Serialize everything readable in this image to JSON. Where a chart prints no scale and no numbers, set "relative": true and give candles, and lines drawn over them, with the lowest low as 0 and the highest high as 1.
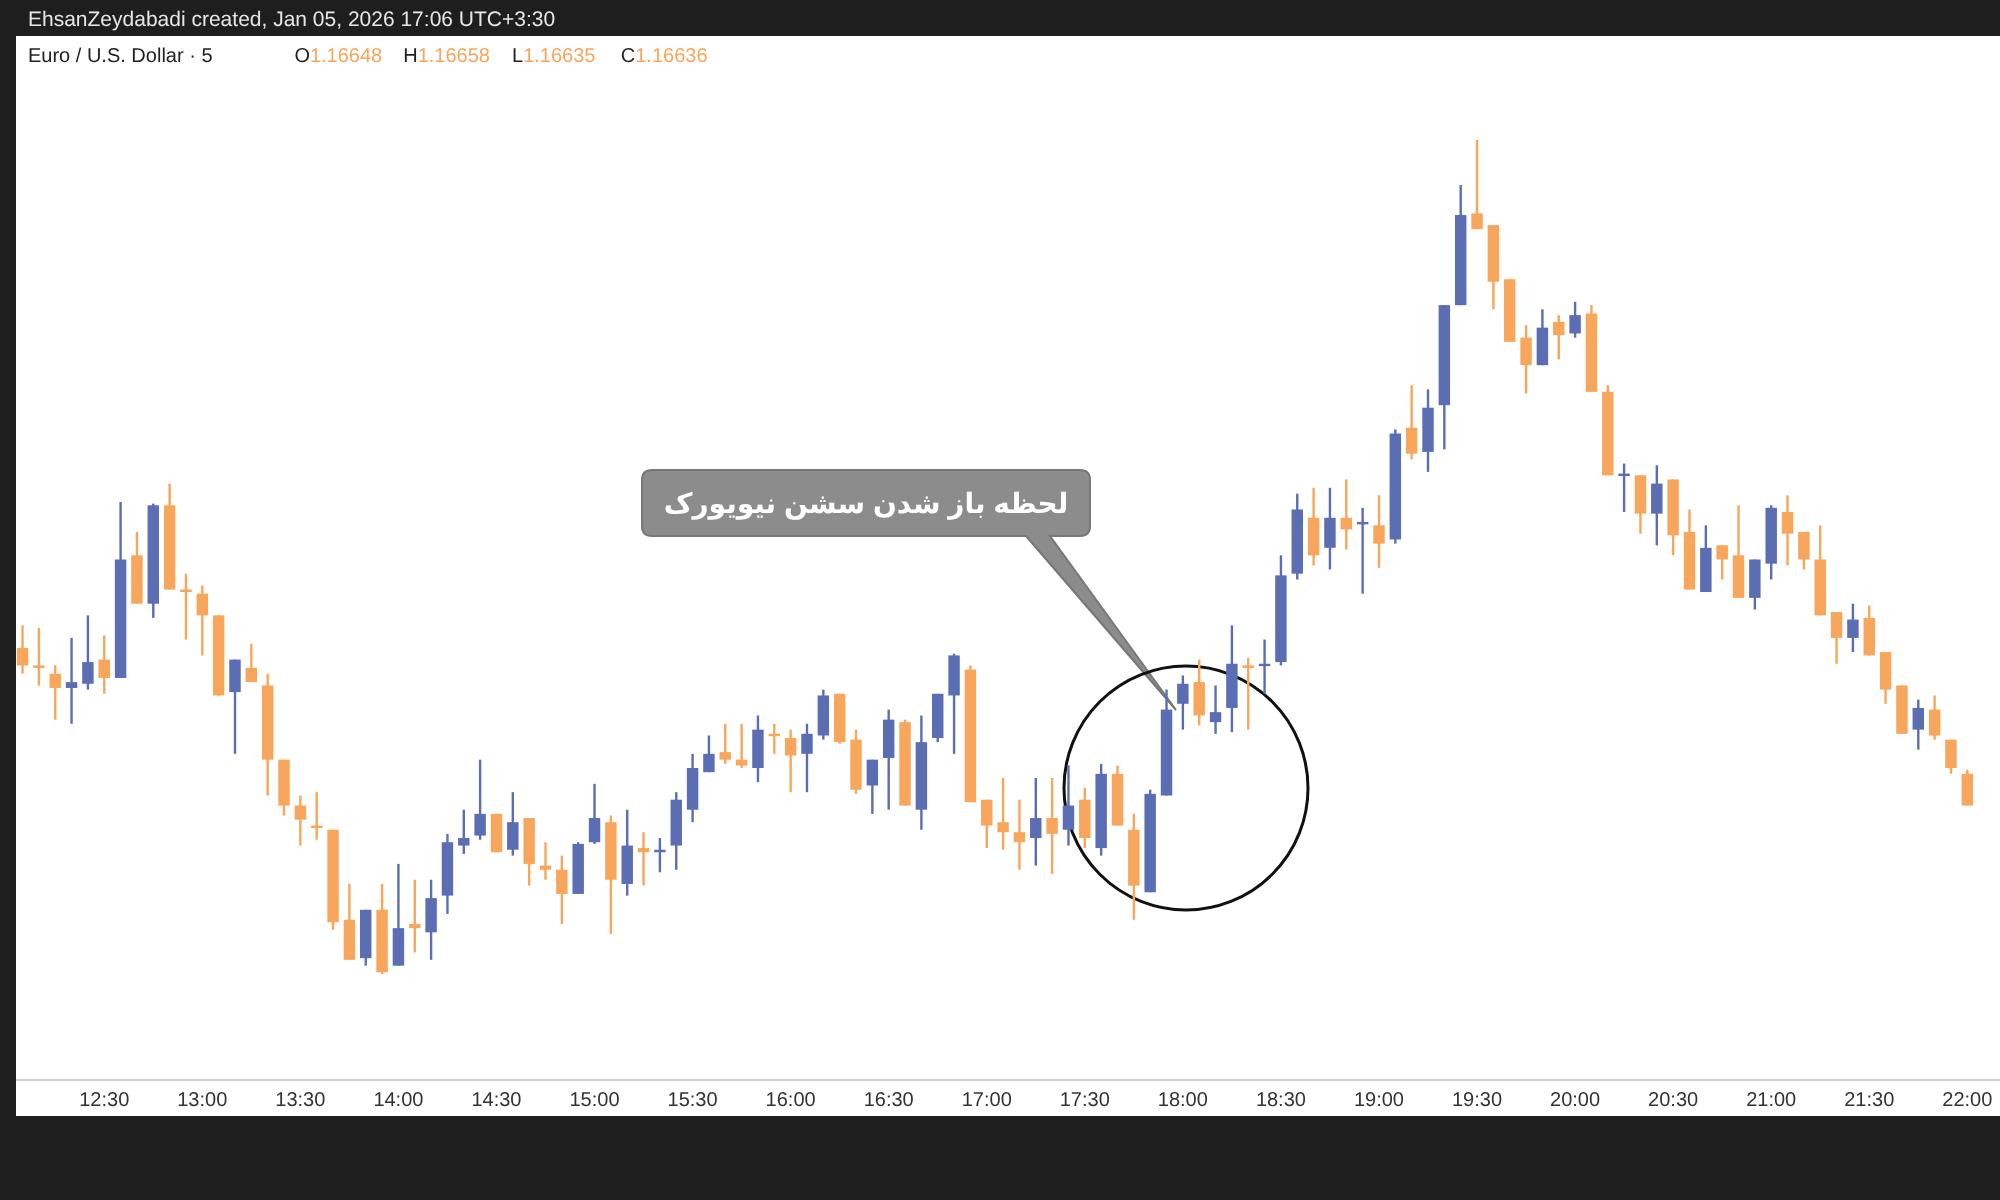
{
  "chart_data": {
    "type": "candlestick",
    "title": "Euro / U.S. Dollar · 5",
    "relative": true,
    "annotations": [
      "EhsanZeydabadi created, Jan 05, 2026 17:06 UTC+3:30",
      "O1.16648",
      "H1.16658",
      "L1.16635",
      "C1.16636",
      "لحظه باز شدن سشن نیویورک"
    ],
    "xlim": [
      "2026-01-05T12:03",
      "2026-01-05T22:10"
    ],
    "xticks": [
      {
        "value": "2026-01-05T12:30",
        "label": "12:30"
      },
      {
        "value": "2026-01-05T13:00",
        "label": "13:00"
      },
      {
        "value": "2026-01-05T13:30",
        "label": "13:30"
      },
      {
        "value": "2026-01-05T14:00",
        "label": "14:00"
      },
      {
        "value": "2026-01-05T14:30",
        "label": "14:30"
      },
      {
        "value": "2026-01-05T15:00",
        "label": "15:00"
      },
      {
        "value": "2026-01-05T15:30",
        "label": "15:30"
      },
      {
        "value": "2026-01-05T16:00",
        "label": "16:00"
      },
      {
        "value": "2026-01-05T16:30",
        "label": "16:30"
      },
      {
        "value": "2026-01-05T17:00",
        "label": "17:00"
      },
      {
        "value": "2026-01-05T17:30",
        "label": "17:30"
      },
      {
        "value": "2026-01-05T18:00",
        "label": "18:00"
      },
      {
        "value": "2026-01-05T18:30",
        "label": "18:30"
      },
      {
        "value": "2026-01-05T19:00",
        "label": "19:00"
      },
      {
        "value": "2026-01-05T19:30",
        "label": "19:30"
      },
      {
        "value": "2026-01-05T20:00",
        "label": "20:00"
      },
      {
        "value": "2026-01-05T20:30",
        "label": "20:30"
      },
      {
        "value": "2026-01-05T21:00",
        "label": "21:00"
      },
      {
        "value": "2026-01-05T21:30",
        "label": "21:30"
      },
      {
        "value": "2026-01-05T22:00",
        "label": "22:00"
      }
    ],
    "x": [
      "2026-01-05T12:05",
      "2026-01-05T12:10",
      "2026-01-05T12:15",
      "2026-01-05T12:20",
      "2026-01-05T12:25",
      "2026-01-05T12:30",
      "2026-01-05T12:35",
      "2026-01-05T12:40",
      "2026-01-05T12:45",
      "2026-01-05T12:50",
      "2026-01-05T12:55",
      "2026-01-05T13:00",
      "2026-01-05T13:05",
      "2026-01-05T13:10",
      "2026-01-05T13:15",
      "2026-01-05T13:20",
      "2026-01-05T13:25",
      "2026-01-05T13:30",
      "2026-01-05T13:35",
      "2026-01-05T13:40",
      "2026-01-05T13:45",
      "2026-01-05T13:50",
      "2026-01-05T13:55",
      "2026-01-05T14:00",
      "2026-01-05T14:05",
      "2026-01-05T14:10",
      "2026-01-05T14:15",
      "2026-01-05T14:20",
      "2026-01-05T14:25",
      "2026-01-05T14:30",
      "2026-01-05T14:35",
      "2026-01-05T14:40",
      "2026-01-05T14:45",
      "2026-01-05T14:50",
      "2026-01-05T14:55",
      "2026-01-05T15:00",
      "2026-01-05T15:05",
      "2026-01-05T15:10",
      "2026-01-05T15:15",
      "2026-01-05T15:20",
      "2026-01-05T15:25",
      "2026-01-05T15:30",
      "2026-01-05T15:35",
      "2026-01-05T15:40",
      "2026-01-05T15:45",
      "2026-01-05T15:50",
      "2026-01-05T15:55",
      "2026-01-05T16:00",
      "2026-01-05T16:05",
      "2026-01-05T16:10",
      "2026-01-05T16:15",
      "2026-01-05T16:20",
      "2026-01-05T16:25",
      "2026-01-05T16:30",
      "2026-01-05T16:35",
      "2026-01-05T16:40",
      "2026-01-05T16:45",
      "2026-01-05T16:50",
      "2026-01-05T16:55",
      "2026-01-05T17:00",
      "2026-01-05T17:05",
      "2026-01-05T17:10",
      "2026-01-05T17:15",
      "2026-01-05T17:20",
      "2026-01-05T17:25",
      "2026-01-05T17:30",
      "2026-01-05T17:35",
      "2026-01-05T17:40",
      "2026-01-05T17:45",
      "2026-01-05T17:50",
      "2026-01-05T17:55",
      "2026-01-05T18:00",
      "2026-01-05T18:05",
      "2026-01-05T18:10",
      "2026-01-05T18:15",
      "2026-01-05T18:20",
      "2026-01-05T18:25",
      "2026-01-05T18:30",
      "2026-01-05T18:35",
      "2026-01-05T18:40",
      "2026-01-05T18:45",
      "2026-01-05T18:50",
      "2026-01-05T18:55",
      "2026-01-05T19:00",
      "2026-01-05T19:05",
      "2026-01-05T19:10",
      "2026-01-05T19:15",
      "2026-01-05T19:20",
      "2026-01-05T19:25",
      "2026-01-05T19:30",
      "2026-01-05T19:35",
      "2026-01-05T19:40",
      "2026-01-05T19:45",
      "2026-01-05T19:50",
      "2026-01-05T19:55",
      "2026-01-05T20:00",
      "2026-01-05T20:05",
      "2026-01-05T20:10",
      "2026-01-05T20:15",
      "2026-01-05T20:20",
      "2026-01-05T20:25",
      "2026-01-05T20:30",
      "2026-01-05T20:35",
      "2026-01-05T20:40",
      "2026-01-05T20:45",
      "2026-01-05T20:50",
      "2026-01-05T20:55",
      "2026-01-05T21:00",
      "2026-01-05T21:05",
      "2026-01-05T21:10",
      "2026-01-05T21:15",
      "2026-01-05T21:20",
      "2026-01-05T21:25",
      "2026-01-05T21:30",
      "2026-01-05T21:35",
      "2026-01-05T21:40",
      "2026-01-05T21:45",
      "2026-01-05T21:50",
      "2026-01-05T21:55",
      "2026-01-05T22:00"
    ],
    "ohlc": [
      [
        0.391,
        0.418,
        0.36,
        0.37
      ],
      [
        0.37,
        0.415,
        0.346,
        0.367
      ],
      [
        0.36,
        0.37,
        0.305,
        0.343
      ],
      [
        0.343,
        0.403,
        0.3,
        0.35
      ],
      [
        0.348,
        0.43,
        0.341,
        0.374
      ],
      [
        0.377,
        0.406,
        0.336,
        0.355
      ],
      [
        0.355,
        0.566,
        0.355,
        0.497
      ],
      [
        0.502,
        0.53,
        0.444,
        0.444
      ],
      [
        0.444,
        0.564,
        0.427,
        0.562
      ],
      [
        0.562,
        0.588,
        0.461,
        0.461
      ],
      [
        0.461,
        0.48,
        0.401,
        0.458
      ],
      [
        0.456,
        0.466,
        0.382,
        0.43
      ],
      [
        0.43,
        0.43,
        0.334,
        0.334
      ],
      [
        0.338,
        0.377,
        0.264,
        0.377
      ],
      [
        0.367,
        0.396,
        0.35,
        0.35
      ],
      [
        0.346,
        0.36,
        0.214,
        0.257
      ],
      [
        0.257,
        0.257,
        0.19,
        0.202
      ],
      [
        0.202,
        0.214,
        0.154,
        0.185
      ],
      [
        0.178,
        0.218,
        0.161,
        0.175
      ],
      [
        0.173,
        0.173,
        0.053,
        0.062
      ],
      [
        0.065,
        0.108,
        0.017,
        0.017
      ],
      [
        0.019,
        0.077,
        0.01,
        0.077
      ],
      [
        0.077,
        0.108,
        0,
        0.002
      ],
      [
        0.01,
        0.132,
        0.01,
        0.055
      ],
      [
        0.06,
        0.113,
        0.026,
        0.055
      ],
      [
        0.05,
        0.113,
        0.017,
        0.091
      ],
      [
        0.094,
        0.168,
        0.072,
        0.158
      ],
      [
        0.154,
        0.197,
        0.144,
        0.163
      ],
      [
        0.166,
        0.257,
        0.161,
        0.192
      ],
      [
        0.192,
        0.192,
        0.146,
        0.146
      ],
      [
        0.149,
        0.218,
        0.142,
        0.182
      ],
      [
        0.187,
        0.187,
        0.106,
        0.132
      ],
      [
        0.13,
        0.158,
        0.113,
        0.125
      ],
      [
        0.125,
        0.142,
        0.06,
        0.096
      ],
      [
        0.096,
        0.158,
        0.096,
        0.156
      ],
      [
        0.158,
        0.228,
        0.156,
        0.187
      ],
      [
        0.182,
        0.19,
        0.048,
        0.113
      ],
      [
        0.108,
        0.197,
        0.094,
        0.154
      ],
      [
        0.151,
        0.17,
        0.106,
        0.146
      ],
      [
        0.146,
        0.163,
        0.122,
        0.149
      ],
      [
        0.154,
        0.218,
        0.125,
        0.209
      ],
      [
        0.197,
        0.264,
        0.182,
        0.247
      ],
      [
        0.242,
        0.286,
        0.242,
        0.264
      ],
      [
        0.266,
        0.3,
        0.252,
        0.257
      ],
      [
        0.257,
        0.3,
        0.247,
        0.25
      ],
      [
        0.247,
        0.31,
        0.23,
        0.293
      ],
      [
        0.288,
        0.3,
        0.264,
        0.286
      ],
      [
        0.283,
        0.293,
        0.218,
        0.262
      ],
      [
        0.264,
        0.3,
        0.218,
        0.288
      ],
      [
        0.286,
        0.341,
        0.281,
        0.334
      ],
      [
        0.336,
        0.336,
        0.276,
        0.278
      ],
      [
        0.281,
        0.293,
        0.216,
        0.221
      ],
      [
        0.226,
        0.257,
        0.192,
        0.257
      ],
      [
        0.259,
        0.317,
        0.197,
        0.305
      ],
      [
        0.302,
        0.305,
        0.202,
        0.202
      ],
      [
        0.197,
        0.31,
        0.173,
        0.278
      ],
      [
        0.283,
        0.336,
        0.278,
        0.336
      ],
      [
        0.334,
        0.384,
        0.264,
        0.382
      ],
      [
        0.365,
        0.37,
        0.206,
        0.206
      ],
      [
        0.209,
        0.209,
        0.151,
        0.178
      ],
      [
        0.182,
        0.235,
        0.149,
        0.17
      ],
      [
        0.17,
        0.209,
        0.125,
        0.158
      ],
      [
        0.163,
        0.235,
        0.13,
        0.187
      ],
      [
        0.187,
        0.235,
        0.12,
        0.168
      ],
      [
        0.173,
        0.25,
        0.154,
        0.202
      ],
      [
        0.209,
        0.223,
        0.151,
        0.163
      ],
      [
        0.151,
        0.252,
        0.142,
        0.24
      ],
      [
        0.24,
        0.25,
        0.178,
        0.178
      ],
      [
        0.173,
        0.192,
        0.065,
        0.106
      ],
      [
        0.098,
        0.221,
        0.098,
        0.216
      ],
      [
        0.214,
        0.341,
        0.214,
        0.317
      ],
      [
        0.324,
        0.358,
        0.293,
        0.348
      ],
      [
        0.35,
        0.377,
        0.298,
        0.31
      ],
      [
        0.302,
        0.346,
        0.288,
        0.314
      ],
      [
        0.319,
        0.418,
        0.29,
        0.372
      ],
      [
        0.37,
        0.379,
        0.293,
        0.367
      ],
      [
        0.37,
        0.401,
        0.336,
        0.372
      ],
      [
        0.374,
        0.502,
        0.37,
        0.478
      ],
      [
        0.48,
        0.576,
        0.473,
        0.557
      ],
      [
        0.547,
        0.583,
        0.49,
        0.502
      ],
      [
        0.511,
        0.583,
        0.485,
        0.547
      ],
      [
        0.547,
        0.593,
        0.509,
        0.533
      ],
      [
        0.54,
        0.559,
        0.456,
        0.542
      ],
      [
        0.538,
        0.574,
        0.487,
        0.516
      ],
      [
        0.521,
        0.653,
        0.516,
        0.648
      ],
      [
        0.655,
        0.706,
        0.617,
        0.624
      ],
      [
        0.626,
        0.701,
        0.602,
        0.679
      ],
      [
        0.682,
        0.802,
        0.629,
        0.802
      ],
      [
        0.802,
        0.946,
        0.802,
        0.91
      ],
      [
        0.912,
        1,
        0.893,
        0.893
      ],
      [
        0.898,
        0.898,
        0.797,
        0.83
      ],
      [
        0.833,
        0.833,
        0.758,
        0.758
      ],
      [
        0.763,
        0.778,
        0.696,
        0.73
      ],
      [
        0.73,
        0.797,
        0.73,
        0.775
      ],
      [
        0.782,
        0.79,
        0.737,
        0.766
      ],
      [
        0.768,
        0.806,
        0.763,
        0.79
      ],
      [
        0.792,
        0.802,
        0.698,
        0.698
      ],
      [
        0.698,
        0.706,
        0.598,
        0.598
      ],
      [
        0.598,
        0.612,
        0.554,
        0.6
      ],
      [
        0.598,
        0.598,
        0.528,
        0.552
      ],
      [
        0.552,
        0.61,
        0.514,
        0.588
      ],
      [
        0.593,
        0.593,
        0.502,
        0.526
      ],
      [
        0.53,
        0.557,
        0.461,
        0.461
      ],
      [
        0.458,
        0.538,
        0.458,
        0.511
      ],
      [
        0.514,
        0.514,
        0.473,
        0.497
      ],
      [
        0.502,
        0.562,
        0.451,
        0.451
      ],
      [
        0.451,
        0.497,
        0.437,
        0.497
      ],
      [
        0.492,
        0.562,
        0.473,
        0.559
      ],
      [
        0.554,
        0.574,
        0.49,
        0.528
      ],
      [
        0.53,
        0.53,
        0.485,
        0.497
      ],
      [
        0.497,
        0.538,
        0.43,
        0.43
      ],
      [
        0.434,
        0.434,
        0.372,
        0.403
      ],
      [
        0.403,
        0.444,
        0.386,
        0.425
      ],
      [
        0.427,
        0.442,
        0.382,
        0.382
      ],
      [
        0.386,
        0.386,
        0.324,
        0.341
      ],
      [
        0.346,
        0.346,
        0.288,
        0.288
      ],
      [
        0.293,
        0.329,
        0.269,
        0.319
      ],
      [
        0.317,
        0.334,
        0.281,
        0.286
      ],
      [
        0.281,
        0.281,
        0.24,
        0.247
      ],
      [
        0.24,
        0.245,
        0.202,
        0.202
      ]
    ],
    "colors": [
      "#f7a65b",
      "#f7a65b",
      "#f7a65b",
      "#5b6db3",
      "#5b6db3",
      "#f7a65b",
      "#5b6db3",
      "#f7a65b",
      "#5b6db3",
      "#f7a65b",
      "#f7a65b",
      "#f7a65b",
      "#f7a65b",
      "#5b6db3",
      "#f7a65b",
      "#f7a65b",
      "#f7a65b",
      "#f7a65b",
      "#f7a65b",
      "#f7a65b",
      "#f7a65b",
      "#5b6db3",
      "#f7a65b",
      "#5b6db3",
      "#f7a65b",
      "#5b6db3",
      "#5b6db3",
      "#5b6db3",
      "#5b6db3",
      "#f7a65b",
      "#5b6db3",
      "#f7a65b",
      "#f7a65b",
      "#f7a65b",
      "#5b6db3",
      "#5b6db3",
      "#f7a65b",
      "#5b6db3",
      "#f7a65b",
      "#5b6db3",
      "#5b6db3",
      "#5b6db3",
      "#5b6db3",
      "#f7a65b",
      "#f7a65b",
      "#5b6db3",
      "#f7a65b",
      "#f7a65b",
      "#5b6db3",
      "#5b6db3",
      "#f7a65b",
      "#f7a65b",
      "#5b6db3",
      "#5b6db3",
      "#f7a65b",
      "#5b6db3",
      "#5b6db3",
      "#5b6db3",
      "#f7a65b",
      "#f7a65b",
      "#f7a65b",
      "#f7a65b",
      "#5b6db3",
      "#f7a65b",
      "#5b6db3",
      "#f7a65b",
      "#5b6db3",
      "#f7a65b",
      "#f7a65b",
      "#5b6db3",
      "#5b6db3",
      "#5b6db3",
      "#f7a65b",
      "#5b6db3",
      "#5b6db3",
      "#f7a65b",
      "#5b6db3",
      "#5b6db3",
      "#5b6db3",
      "#f7a65b",
      "#5b6db3",
      "#f7a65b",
      "#5b6db3",
      "#f7a65b",
      "#5b6db3",
      "#f7a65b",
      "#5b6db3",
      "#5b6db3",
      "#5b6db3",
      "#f7a65b",
      "#f7a65b",
      "#f7a65b",
      "#f7a65b",
      "#5b6db3",
      "#f7a65b",
      "#5b6db3",
      "#f7a65b",
      "#f7a65b",
      "#5b6db3",
      "#f7a65b",
      "#5b6db3",
      "#f7a65b",
      "#f7a65b",
      "#5b6db3",
      "#f7a65b",
      "#f7a65b",
      "#5b6db3",
      "#5b6db3",
      "#f7a65b",
      "#f7a65b",
      "#f7a65b",
      "#f7a65b",
      "#5b6db3",
      "#f7a65b",
      "#f7a65b",
      "#f7a65b",
      "#5b6db3",
      "#f7a65b",
      "#f7a65b",
      "#f7a65b"
    ]
  }
}
